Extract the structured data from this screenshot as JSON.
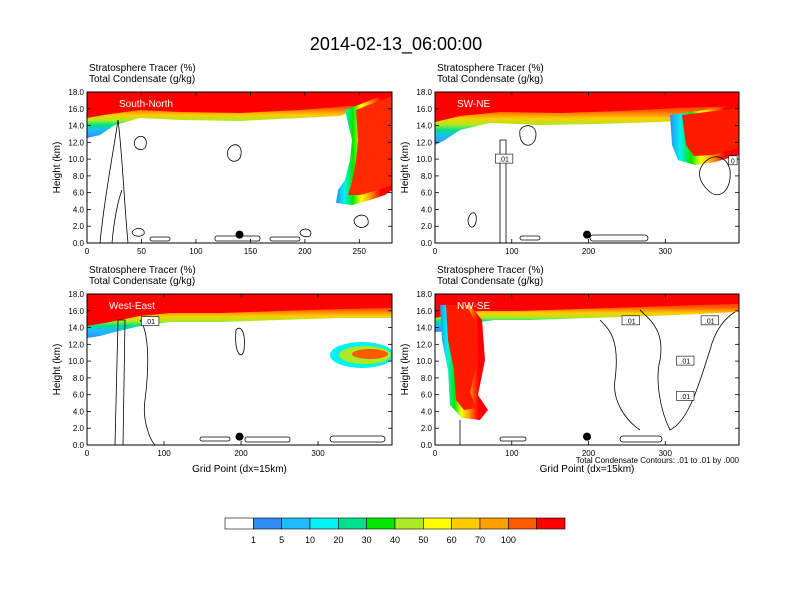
{
  "title": "2014-02-13_06:00:00",
  "note": "Total Condensate Contours: .01 to .01 by .000",
  "colors": [
    "#ffffff",
    "#2e8ef5",
    "#1ebcff",
    "#00f2f2",
    "#00e08c",
    "#00e600",
    "#a8ec21",
    "#ffff00",
    "#ffcc00",
    "#ffa000",
    "#ff5a00",
    "#ff0000"
  ],
  "chart_data": [
    {
      "type": "heatmap",
      "panel_label": "South-North",
      "subtitle_1": "Stratosphere Tracer   (%)",
      "subtitle_2": "Total Condensate   (g/kg)",
      "ylabel": "Height (km)",
      "xlabel": "",
      "xlim": [
        0,
        280
      ],
      "ylim": [
        0,
        18
      ],
      "x_ticks": [
        "0",
        "50",
        "100",
        "150",
        "200",
        "250"
      ],
      "x_tick_values": [
        0,
        50,
        100,
        150,
        200,
        250
      ],
      "y_ticks": [
        "0.0",
        "2.0",
        "4.0",
        "6.0",
        "8.0",
        "10.0",
        "12.0",
        "14.0",
        "16.0",
        "18.0"
      ],
      "marker": {
        "x": 140,
        "y": 1.0
      },
      "contour_labels": []
    },
    {
      "type": "heatmap",
      "panel_label": "SW-NE",
      "subtitle_1": "Stratosphere Tracer   (%)",
      "subtitle_2": "Total Condensate   (g/kg)",
      "ylabel": "Height (km)",
      "xlabel": "",
      "xlim": [
        0,
        396
      ],
      "ylim": [
        0,
        18
      ],
      "x_ticks": [
        "0",
        "100",
        "200",
        "300"
      ],
      "x_tick_values": [
        0,
        100,
        200,
        300
      ],
      "y_ticks": [
        "0.0",
        "2.0",
        "4.0",
        "6.0",
        "8.0",
        "10.0",
        "12.0",
        "14.0",
        "16.0",
        "18.0"
      ],
      "marker": {
        "x": 198,
        "y": 1.0
      },
      "contour_labels": [
        {
          "text": ".01",
          "x": 90,
          "y": 10.0
        },
        {
          "text": "0",
          "x": 388,
          "y": 9.8
        }
      ]
    },
    {
      "type": "heatmap",
      "panel_label": "West-East",
      "subtitle_1": "Stratosphere Tracer   (%)",
      "subtitle_2": "Total Condensate   (g/kg)",
      "ylabel": "Height (km)",
      "xlabel": "Grid Point (dx=15km)",
      "xlim": [
        0,
        396
      ],
      "ylim": [
        0,
        18
      ],
      "x_ticks": [
        "0",
        "100",
        "200",
        "300"
      ],
      "x_tick_values": [
        0,
        100,
        200,
        300
      ],
      "y_ticks": [
        "0.0",
        "2.0",
        "4.0",
        "6.0",
        "8.0",
        "10.0",
        "12.0",
        "14.0",
        "16.0",
        "18.0"
      ],
      "marker": {
        "x": 198,
        "y": 1.0
      },
      "contour_labels": [
        {
          "text": ".01",
          "x": 82,
          "y": 14.7
        }
      ]
    },
    {
      "type": "heatmap",
      "panel_label": "NW-SE",
      "subtitle_1": "Stratosphere Tracer   (%)",
      "subtitle_2": "Total Condensate   (g/kg)",
      "ylabel": "Height (km)",
      "xlabel": "Grid Point (dx=15km)",
      "xlim": [
        0,
        396
      ],
      "ylim": [
        0,
        18
      ],
      "x_ticks": [
        "0",
        "100",
        "200",
        "300"
      ],
      "x_tick_values": [
        0,
        100,
        200,
        300
      ],
      "y_ticks": [
        "0.0",
        "2.0",
        "4.0",
        "6.0",
        "8.0",
        "10.0",
        "12.0",
        "14.0",
        "16.0",
        "18.0"
      ],
      "marker": {
        "x": 198,
        "y": 1.0
      },
      "contour_labels": [
        {
          "text": ".01",
          "x": 255,
          "y": 14.8
        },
        {
          "text": ".01",
          "x": 358,
          "y": 14.8
        },
        {
          "text": ".01",
          "x": 326,
          "y": 10.0
        },
        {
          "text": ".01",
          "x": 326,
          "y": 5.8
        }
      ]
    }
  ],
  "colorbar": {
    "labels": [
      "1",
      "5",
      "10",
      "20",
      "30",
      "40",
      "50",
      "60",
      "70",
      "100"
    ],
    "colors": [
      "#ffffff",
      "#2e8ef5",
      "#1ebcff",
      "#00f2f2",
      "#00e08c",
      "#00e600",
      "#a8ec21",
      "#ffff00",
      "#ffcc00",
      "#ffa000",
      "#ff5a00",
      "#ff0000"
    ]
  }
}
